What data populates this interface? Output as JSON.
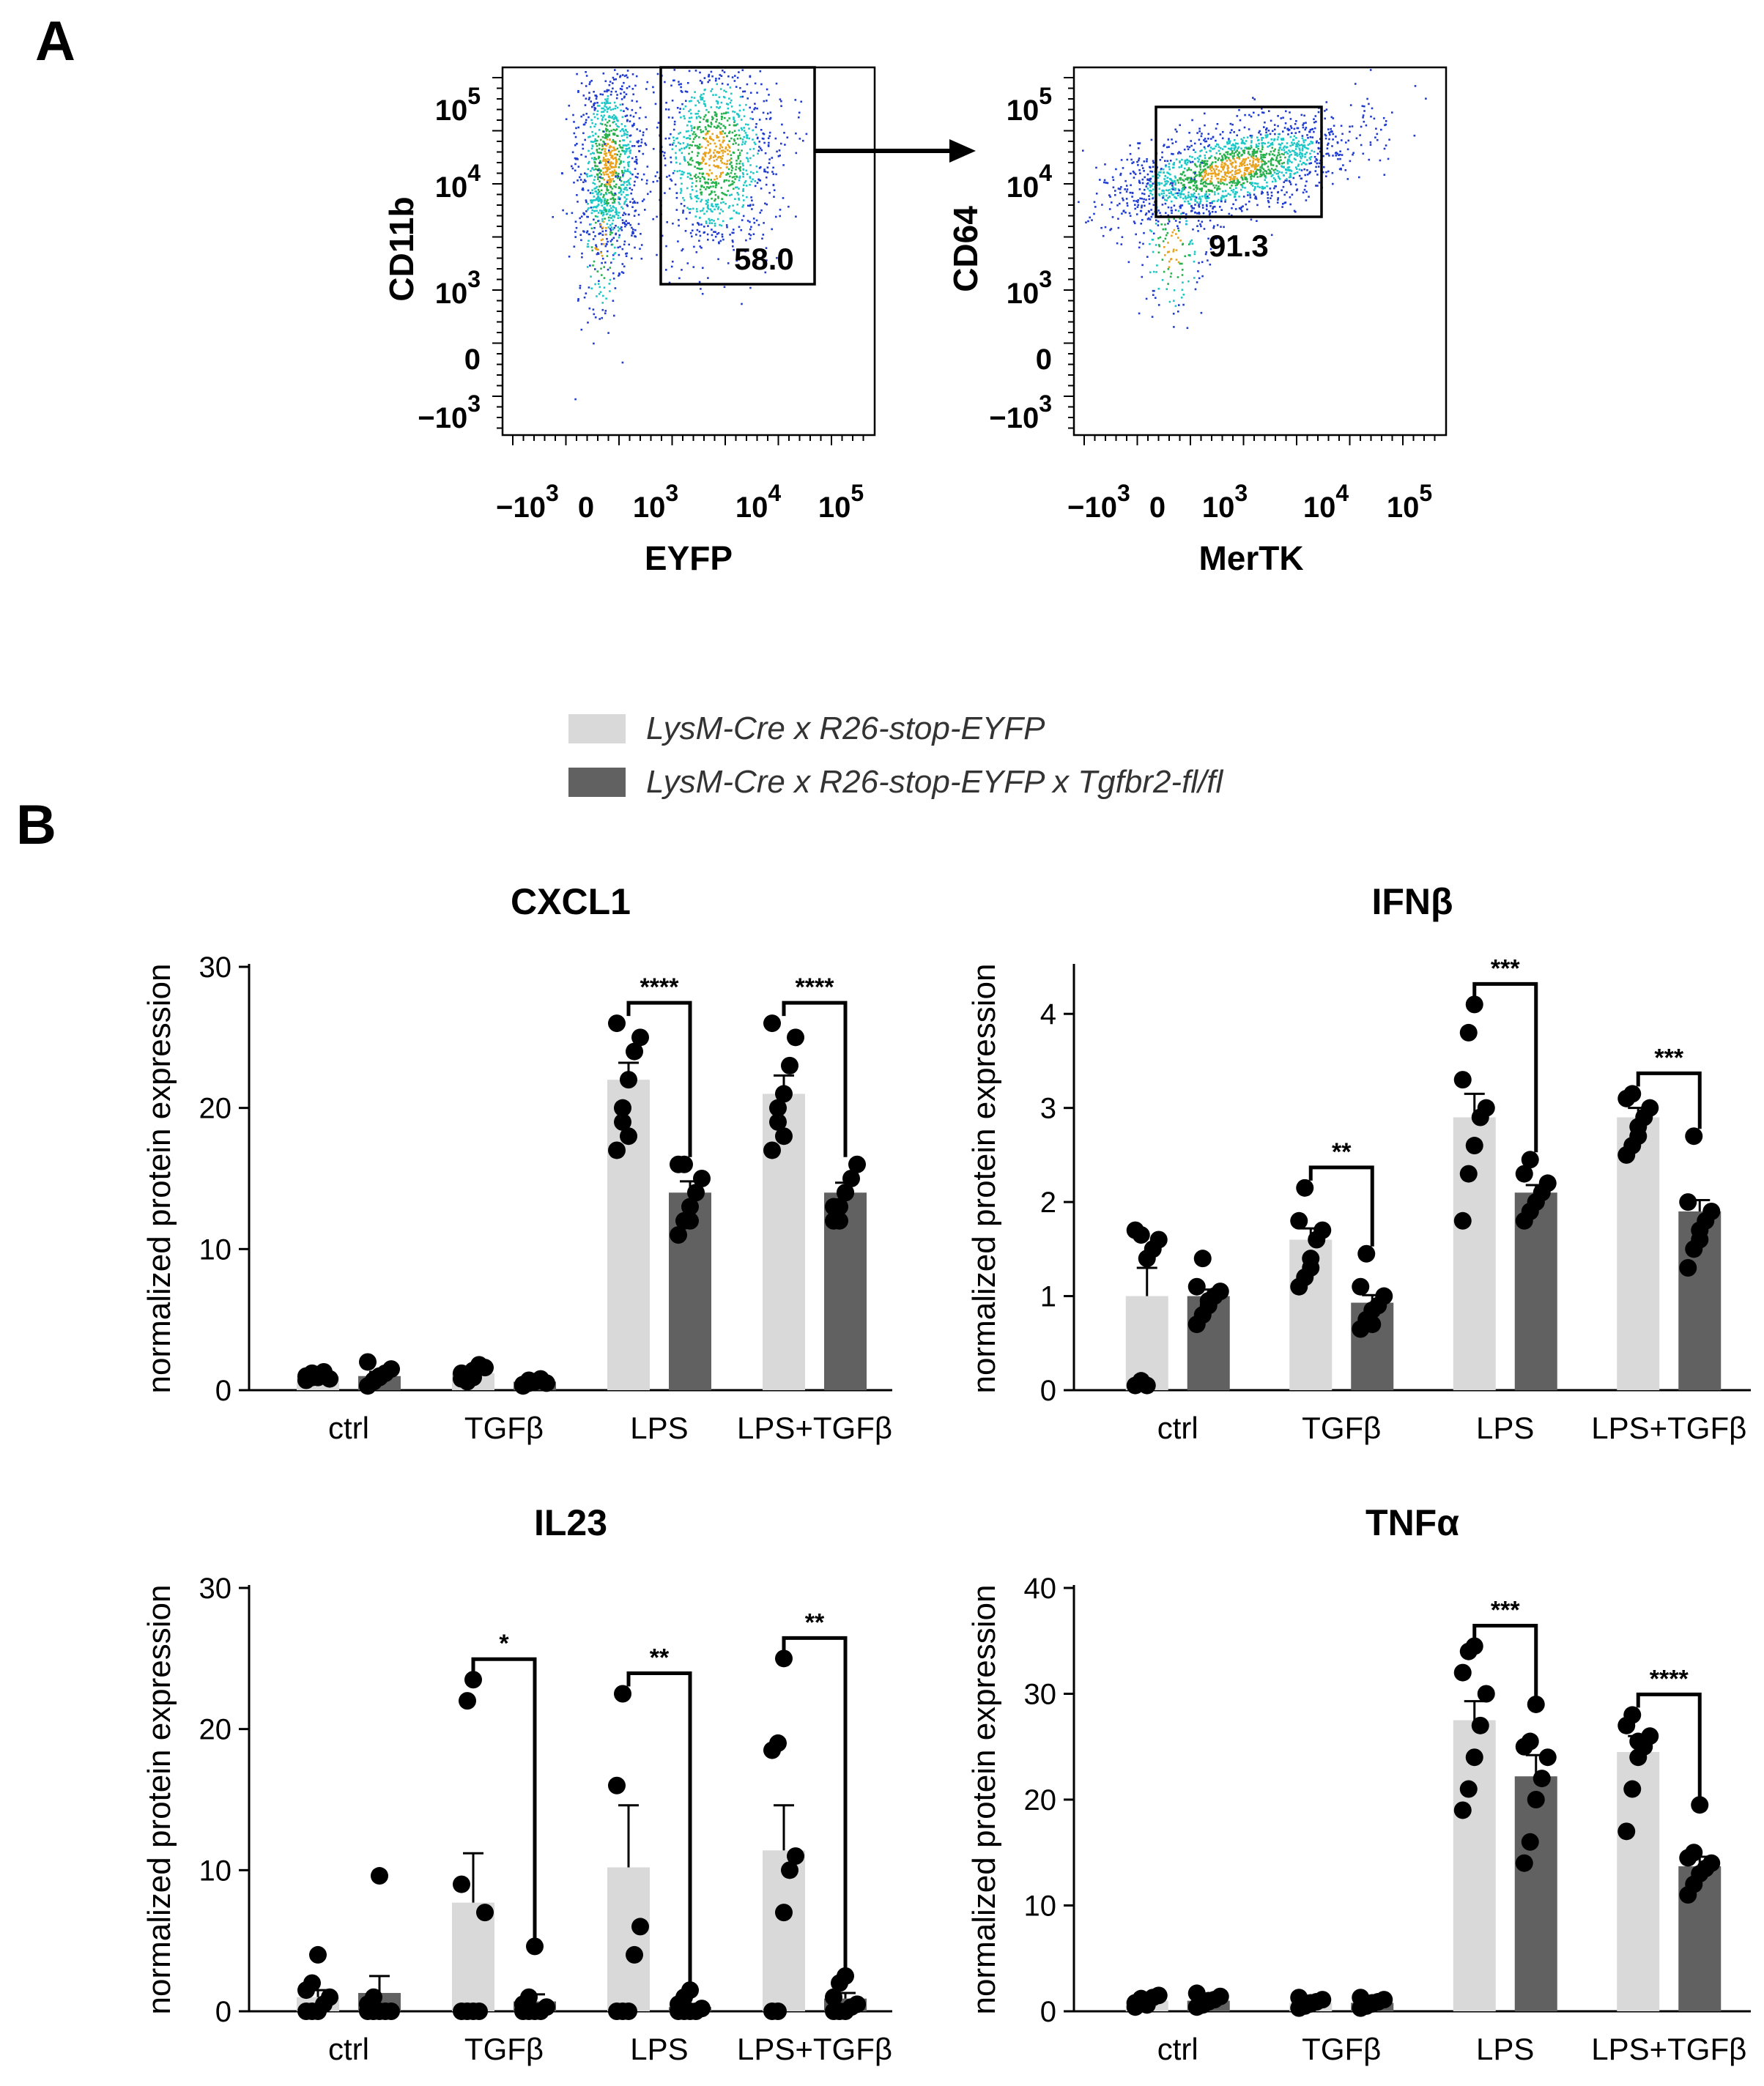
{
  "panels": {
    "a": "A",
    "b": "B"
  },
  "colors": {
    "wt": "#d9d9d9",
    "ko": "#616161",
    "dot": "#000000"
  },
  "legend": {
    "items": [
      "LysM-Cre x R26-stop-EYFP",
      "LysM-Cre x R26-stop-EYFP x Tgfbr2-fl/fl"
    ]
  },
  "flow": {
    "tick_labels_x": [
      {
        "base": "−10",
        "exp": "3"
      },
      {
        "base": "0",
        "exp": ""
      },
      {
        "base": "10",
        "exp": "3"
      },
      {
        "base": "10",
        "exp": "4"
      },
      {
        "base": "10",
        "exp": "5"
      }
    ],
    "tick_labels_y": [
      {
        "base": "10",
        "exp": "5"
      },
      {
        "base": "10",
        "exp": "4"
      },
      {
        "base": "10",
        "exp": "3"
      },
      {
        "base": "0",
        "exp": ""
      },
      {
        "base": "−10",
        "exp": "3"
      }
    ],
    "plots": [
      {
        "xlabel": "EYFP",
        "ylabel": "CD11b",
        "gate_value": "58.0"
      },
      {
        "xlabel": "MerTK",
        "ylabel": "CD64",
        "gate_value": "91.3"
      }
    ]
  },
  "chart_data": [
    {
      "type": "bar",
      "title": "CXCL1",
      "ylabel": "normalized protein expression",
      "categories": [
        "ctrl",
        "TGFβ",
        "LPS",
        "LPS+TGFβ"
      ],
      "ylim": [
        0,
        30
      ],
      "yticks": [
        0,
        10,
        20,
        30
      ],
      "series": [
        {
          "name": "LysM-Cre x R26-stop-EYFP",
          "values": [
            1.0,
            1.2,
            22.0,
            21.0
          ],
          "errors": [
            0.2,
            0.3,
            1.2,
            1.3
          ],
          "points": [
            [
              0.7,
              0.9,
              1.1,
              1.3,
              0.8,
              1.0,
              1.2,
              0.9
            ],
            [
              0.8,
              1.0,
              1.4,
              1.8,
              1.6,
              1.2,
              0.6,
              0.9
            ],
            [
              17,
              19,
              22,
              24,
              25,
              26,
              20,
              18
            ],
            [
              17,
              19,
              21,
              23,
              25,
              26,
              20,
              18
            ]
          ]
        },
        {
          "name": "LysM-Cre x R26-stop-EYFP x Tgfbr2-fl/fl",
          "values": [
            1.0,
            0.6,
            14.0,
            14.0
          ],
          "errors": [
            0.3,
            0.1,
            0.8,
            0.7
          ],
          "points": [
            [
              0.3,
              0.6,
              0.9,
              1.2,
              1.5,
              2.0,
              0.7,
              1.0
            ],
            [
              0.3,
              0.5,
              0.6,
              0.8,
              0.5,
              0.4,
              0.7,
              0.6
            ],
            [
              11,
              12,
              13,
              14,
              15,
              16,
              16,
              12
            ],
            [
              12,
              13,
              14,
              15,
              16,
              13,
              12,
              14
            ]
          ]
        }
      ],
      "significance": [
        {
          "category": 2,
          "label": "****"
        },
        {
          "category": 3,
          "label": "****"
        }
      ]
    },
    {
      "type": "bar",
      "title": "IFNβ",
      "ylabel": "normalized protein expression",
      "categories": [
        "ctrl",
        "TGFβ",
        "LPS",
        "LPS+TGFβ"
      ],
      "ylim": [
        0,
        4.5
      ],
      "yticks": [
        0,
        1,
        2,
        3,
        4
      ],
      "series": [
        {
          "name": "LysM-Cre x R26-stop-EYFP",
          "values": [
            1.0,
            1.6,
            2.9,
            2.9
          ],
          "errors": [
            0.3,
            0.12,
            0.25,
            0.1
          ],
          "points": [
            [
              0.05,
              0.1,
              1.4,
              1.5,
              1.6,
              1.7,
              1.65,
              0.05
            ],
            [
              1.1,
              1.2,
              1.4,
              1.6,
              1.7,
              1.8,
              2.15,
              1.3
            ],
            [
              1.8,
              2.3,
              2.6,
              2.9,
              3.0,
              3.3,
              3.8,
              4.1
            ],
            [
              2.5,
              2.6,
              2.8,
              2.9,
              3.0,
              3.1,
              3.15,
              2.7
            ]
          ]
        },
        {
          "name": "LysM-Cre x R26-stop-EYFP x Tgfbr2-fl/fl",
          "values": [
            1.0,
            0.93,
            2.1,
            1.9
          ],
          "errors": [
            0.07,
            0.08,
            0.08,
            0.12
          ],
          "points": [
            [
              0.7,
              0.8,
              0.9,
              1.0,
              1.05,
              1.1,
              1.4,
              0.95
            ],
            [
              0.65,
              0.75,
              0.85,
              0.9,
              1.0,
              1.1,
              1.45,
              0.7
            ],
            [
              1.8,
              1.9,
              2.0,
              2.1,
              2.2,
              2.3,
              2.45,
              2.0
            ],
            [
              1.3,
              1.5,
              1.7,
              1.8,
              1.9,
              2.0,
              2.7,
              1.6
            ]
          ]
        }
      ],
      "significance": [
        {
          "category": 1,
          "label": "**"
        },
        {
          "category": 2,
          "label": "***"
        },
        {
          "category": 3,
          "label": "***"
        }
      ]
    },
    {
      "type": "bar",
      "title": "IL23",
      "ylabel": "normalized protein expression",
      "categories": [
        "ctrl",
        "TGFβ",
        "LPS",
        "LPS+TGFβ"
      ],
      "ylim": [
        0,
        30
      ],
      "yticks": [
        0,
        10,
        20,
        30
      ],
      "series": [
        {
          "name": "LysM-Cre x R26-stop-EYFP",
          "values": [
            1.0,
            7.7,
            10.2,
            11.4
          ],
          "errors": [
            0.5,
            3.5,
            4.4,
            3.2
          ],
          "points": [
            [
              0,
              0,
              0,
              0.5,
              1.0,
              1.5,
              2.0,
              4.0
            ],
            [
              0,
              0,
              0,
              0,
              7.0,
              9.0,
              22,
              23.5
            ],
            [
              0,
              0,
              0,
              4.0,
              6.0,
              16,
              22.5
            ],
            [
              0,
              0,
              7.0,
              10,
              11,
              18.5,
              19,
              25
            ]
          ]
        },
        {
          "name": "LysM-Cre x R26-stop-EYFP x Tgfbr2-fl/fl",
          "values": [
            1.3,
            0.7,
            0.3,
            0.9
          ],
          "errors": [
            1.2,
            0.5,
            0.2,
            0.4
          ],
          "points": [
            [
              0,
              0,
              0,
              0,
              0,
              0.5,
              1.0,
              9.6
            ],
            [
              0,
              0,
              0,
              0,
              0.3,
              0.5,
              1.0,
              4.6
            ],
            [
              0,
              0,
              0,
              0,
              0.2,
              0.5,
              1.0,
              1.5
            ],
            [
              0,
              0,
              0,
              0.3,
              0.5,
              1.0,
              2.0,
              2.5
            ]
          ]
        }
      ],
      "significance": [
        {
          "category": 1,
          "label": "*"
        },
        {
          "category": 2,
          "label": "**"
        },
        {
          "category": 3,
          "label": "**"
        }
      ]
    },
    {
      "type": "bar",
      "title": "TNFα",
      "ylabel": "normalized protein expression",
      "categories": [
        "ctrl",
        "TGFβ",
        "LPS",
        "LPS+TGFβ"
      ],
      "ylim": [
        0,
        40
      ],
      "yticks": [
        0,
        10,
        20,
        30,
        40
      ],
      "series": [
        {
          "name": "LysM-Cre x R26-stop-EYFP",
          "values": [
            1.0,
            0.8,
            27.5,
            24.5
          ],
          "errors": [
            0.2,
            0.2,
            1.8,
            1.5
          ],
          "points": [
            [
              0.4,
              0.7,
              1.0,
              1.3,
              1.5,
              0.8,
              1.2,
              0.6
            ],
            [
              0.3,
              0.5,
              0.7,
              0.9,
              1.1,
              1.3,
              0.6,
              0.8
            ],
            [
              19,
              21,
              24,
              27,
              30,
              32,
              34,
              34.5
            ],
            [
              17,
              21,
              24,
              25,
              26,
              27,
              28,
              25.5
            ]
          ]
        },
        {
          "name": "LysM-Cre x R26-stop-EYFP x Tgfbr2-fl/fl",
          "values": [
            1.0,
            0.8,
            22.2,
            13.7
          ],
          "errors": [
            0.2,
            0.2,
            2.0,
            0.9
          ],
          "points": [
            [
              0.4,
              0.6,
              0.9,
              1.1,
              1.4,
              1.7,
              0.8,
              1.0
            ],
            [
              0.3,
              0.5,
              0.7,
              0.9,
              1.1,
              1.3,
              0.5,
              0.8
            ],
            [
              14,
              16,
              20,
              22,
              24,
              25,
              25.5,
              29
            ],
            [
              11,
              12,
              13,
              13.5,
              14,
              14.5,
              15,
              19.5
            ]
          ]
        }
      ],
      "significance": [
        {
          "category": 2,
          "label": "***"
        },
        {
          "category": 3,
          "label": "****"
        }
      ]
    }
  ]
}
